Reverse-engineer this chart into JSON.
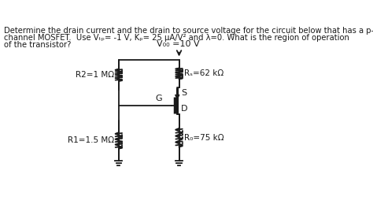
{
  "vdd_label": "V₀₀ =10 V",
  "R2_label": "R2=1 MΩ",
  "R1_label": "R1=1.5 MΩ",
  "Rs_label": "Rₛ=62 kΩ",
  "Rd_label": "R₀=75 kΩ",
  "G_label": "G",
  "S_label": "S",
  "D_label": "D",
  "bg_color": "#ffffff",
  "line_color": "#1a1a1a",
  "text_color": "#1a1a1a",
  "title_line1": "Determine the drain current and the drain to source voltage for the circuit below that has a p-",
  "title_line2": "channel MOSFET.  Use Vₜₚ= -1 V, Kₚ= 25 μA/V² and λ=0. What is the region of operation",
  "title_line3": "of the transistor?"
}
